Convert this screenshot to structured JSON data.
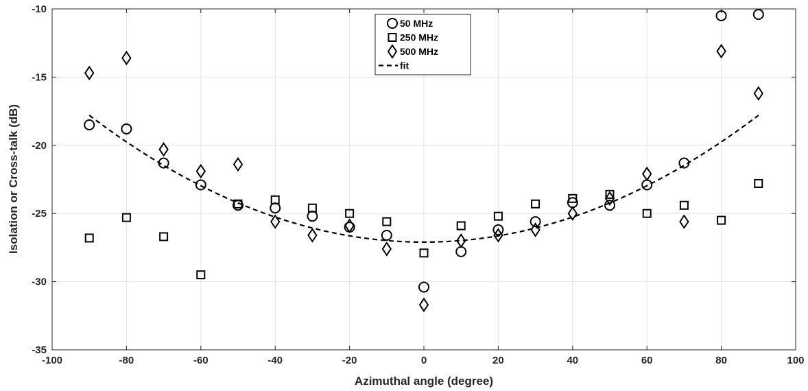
{
  "chart_data": {
    "type": "scatter",
    "title": "",
    "xlabel": "Azimuthal angle (degree)",
    "ylabel": "Isolation or Cross-talk (dB)",
    "xlim": [
      -100,
      100
    ],
    "ylim": [
      -35,
      -10
    ],
    "xticks": [
      "-100",
      "-80",
      "-60",
      "-40",
      "-20",
      "0",
      "20",
      "40",
      "60",
      "80",
      "100"
    ],
    "yticks": [
      "-10",
      "-15",
      "-20",
      "-25",
      "-30",
      "-35"
    ],
    "grid": true,
    "legend_position": "top-center",
    "x": [
      -90,
      -80,
      -70,
      -60,
      -50,
      -40,
      -30,
      -20,
      -10,
      0,
      10,
      20,
      30,
      40,
      50,
      60,
      70,
      80,
      90
    ],
    "series": [
      {
        "name": "50 MHz",
        "marker": "circle",
        "values": [
          -18.5,
          -18.8,
          -21.3,
          -22.9,
          -24.4,
          -24.6,
          -25.2,
          -26.0,
          -26.6,
          -30.4,
          -27.8,
          -26.2,
          -25.6,
          -24.2,
          -24.4,
          -22.9,
          -21.3,
          -10.5,
          -10.4
        ]
      },
      {
        "name": "250 MHz",
        "marker": "square",
        "values": [
          -26.8,
          -25.3,
          -26.7,
          -29.5,
          -24.3,
          -24.0,
          -24.6,
          -25.0,
          -25.6,
          -27.9,
          -25.9,
          -25.2,
          -24.3,
          -23.9,
          -23.6,
          -25.0,
          -24.4,
          -25.5,
          -22.8
        ]
      },
      {
        "name": "500 MHz",
        "marker": "diamond",
        "values": [
          -14.7,
          -13.6,
          -20.3,
          -21.9,
          -21.4,
          -25.6,
          -26.6,
          -25.9,
          -27.6,
          -31.7,
          -27.0,
          -26.6,
          -26.2,
          -25.0,
          -23.9,
          -22.1,
          -25.6,
          -13.1,
          -16.2
        ]
      },
      {
        "name": "fit",
        "style": "dashed-line",
        "shape": "quadratic",
        "vertex": [
          0,
          -27.1
        ],
        "endpoints_y": [
          -17.8,
          -17.8
        ]
      }
    ]
  }
}
